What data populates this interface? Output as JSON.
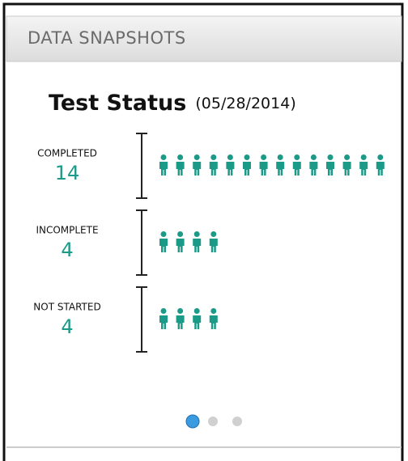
{
  "header": "DATA SNAPSHOTS",
  "chart_data": {
    "type": "pictograph",
    "title": "Test Status",
    "subtitle": "(05/28/2014)",
    "categories": [
      "COMPLETED",
      "INCOMPLETE",
      "NOT STARTED"
    ],
    "values": [
      14,
      4,
      4
    ],
    "color": "#1b9a88"
  }
}
